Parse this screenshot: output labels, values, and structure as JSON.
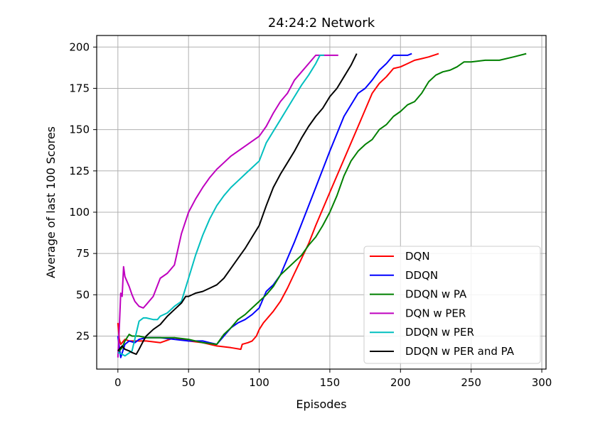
{
  "chart_data": {
    "type": "line",
    "title": "24:24:2 Network",
    "xlabel": "Episodes",
    "ylabel": "Average of last 100 Scores",
    "xlim": [
      -15,
      303
    ],
    "ylim": [
      5,
      207
    ],
    "xticks": [
      0,
      50,
      100,
      150,
      200,
      250,
      300
    ],
    "yticks": [
      25,
      50,
      75,
      100,
      125,
      150,
      175,
      200
    ],
    "grid": true,
    "legend_position": "lower right",
    "series": [
      {
        "name": "DQN",
        "color": "#ff0000",
        "x": [
          0,
          1,
          2,
          3,
          5,
          8,
          12,
          20,
          30,
          40,
          50,
          60,
          70,
          80,
          87,
          88,
          92,
          95,
          98,
          100,
          103,
          106,
          110,
          115,
          120,
          125,
          130,
          135,
          140,
          150,
          160,
          170,
          180,
          185,
          190,
          195,
          200,
          205,
          210,
          215,
          220,
          227
        ],
        "y": [
          33,
          23,
          20,
          21,
          23,
          22,
          22,
          22,
          21,
          24,
          22,
          21,
          19,
          18,
          17,
          20,
          21,
          22,
          25,
          29,
          33,
          36,
          40,
          46,
          54,
          63,
          72,
          81,
          92,
          112,
          132,
          152,
          172,
          178,
          182,
          187,
          188,
          190,
          192,
          193,
          194,
          196
        ]
      },
      {
        "name": "DDQN",
        "color": "#0000ff",
        "x": [
          0,
          2,
          5,
          8,
          12,
          15,
          20,
          30,
          40,
          50,
          60,
          65,
          70,
          75,
          80,
          85,
          90,
          95,
          100,
          105,
          110,
          115,
          120,
          125,
          130,
          140,
          150,
          160,
          170,
          175,
          180,
          185,
          190,
          195,
          200,
          205,
          208
        ],
        "y": [
          25,
          12,
          20,
          22,
          21,
          23,
          24,
          24,
          23,
          22,
          22,
          21,
          20,
          25,
          30,
          33,
          35,
          38,
          42,
          52,
          56,
          62,
          72,
          82,
          93,
          115,
          137,
          158,
          172,
          175,
          180,
          186,
          190,
          195,
          195,
          195,
          196
        ]
      },
      {
        "name": "DDQN w PA",
        "color": "#008000",
        "x": [
          0,
          3,
          5,
          8,
          10,
          15,
          20,
          30,
          40,
          50,
          60,
          70,
          75,
          80,
          85,
          90,
          95,
          100,
          105,
          110,
          115,
          120,
          125,
          130,
          135,
          140,
          145,
          150,
          155,
          160,
          165,
          170,
          175,
          180,
          185,
          190,
          195,
          200,
          205,
          210,
          215,
          220,
          225,
          230,
          235,
          240,
          245,
          250,
          260,
          270,
          280,
          289
        ],
        "y": [
          15,
          18,
          22,
          26,
          25,
          25,
          24,
          24,
          24,
          23,
          21,
          20,
          26,
          30,
          35,
          38,
          42,
          46,
          50,
          55,
          62,
          66,
          70,
          74,
          80,
          85,
          92,
          100,
          110,
          122,
          131,
          137,
          141,
          144,
          150,
          153,
          158,
          161,
          165,
          167,
          172,
          179,
          183,
          185,
          186,
          188,
          191,
          191,
          192,
          192,
          194,
          196
        ]
      },
      {
        "name": "DQN w PER",
        "color": "#bf00bf",
        "x": [
          0,
          1,
          2,
          3,
          4,
          5,
          8,
          10,
          12,
          15,
          18,
          20,
          25,
          30,
          35,
          40,
          45,
          50,
          55,
          60,
          65,
          70,
          75,
          80,
          85,
          90,
          95,
          100,
          105,
          110,
          115,
          120,
          125,
          130,
          135,
          140,
          145,
          150,
          156
        ],
        "y": [
          12,
          30,
          51,
          49,
          67,
          61,
          55,
          50,
          46,
          43,
          42,
          44,
          49,
          60,
          63,
          68,
          87,
          100,
          108,
          115,
          121,
          126,
          130,
          134,
          137,
          140,
          143,
          146,
          152,
          160,
          167,
          172,
          180,
          185,
          190,
          195,
          195,
          195,
          195
        ]
      },
      {
        "name": "DDQN w PER",
        "color": "#00bfbf",
        "x": [
          0,
          3,
          5,
          10,
          15,
          18,
          20,
          25,
          28,
          30,
          35,
          40,
          45,
          50,
          55,
          60,
          65,
          70,
          75,
          80,
          85,
          90,
          95,
          100,
          105,
          110,
          115,
          120,
          125,
          130,
          135,
          140,
          143,
          146
        ],
        "y": [
          15,
          14,
          13,
          16,
          34,
          36,
          36,
          35,
          35,
          37,
          39,
          43,
          46,
          60,
          74,
          86,
          96,
          104,
          110,
          115,
          119,
          123,
          127,
          131,
          142,
          149,
          156,
          163,
          170,
          177,
          183,
          190,
          195,
          195
        ]
      },
      {
        "name": "DDQN w PER and PA",
        "color": "#000000",
        "x": [
          0,
          3,
          5,
          8,
          10,
          13,
          15,
          18,
          20,
          25,
          30,
          35,
          40,
          45,
          48,
          50,
          55,
          60,
          65,
          70,
          75,
          80,
          85,
          90,
          95,
          100,
          105,
          110,
          115,
          120,
          125,
          130,
          135,
          140,
          145,
          150,
          155,
          160,
          165,
          169
        ],
        "y": [
          16,
          19,
          17,
          16,
          15,
          14,
          17,
          22,
          25,
          29,
          32,
          37,
          41,
          45,
          49,
          49,
          51,
          52,
          54,
          56,
          60,
          66,
          72,
          78,
          85,
          92,
          104,
          115,
          123,
          130,
          137,
          145,
          152,
          158,
          163,
          170,
          175,
          182,
          189,
          196
        ]
      }
    ]
  }
}
